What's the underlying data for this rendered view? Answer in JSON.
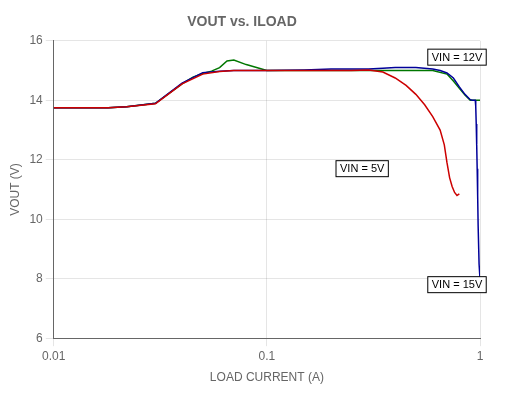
{
  "chart_data": {
    "type": "line",
    "title": "VOUT vs. ILOAD",
    "x_label": "LOAD CURRENT (A)",
    "y_label": "VOUT (V)",
    "log": "x",
    "grid": true,
    "xlim": [
      0.01,
      1.0
    ],
    "xticks": [
      0.01,
      0.1,
      1
    ],
    "ylim": [
      6,
      16
    ],
    "yticks": [
      6,
      8,
      10,
      12,
      14,
      16
    ],
    "series": [
      {
        "color": "#cc0000",
        "x": [
          0.01,
          0.018,
          0.022,
          0.03,
          0.04,
          0.05,
          0.06,
          0.07,
          0.08,
          0.1,
          0.15,
          0.2,
          0.25,
          0.3,
          0.35,
          0.4,
          0.45,
          0.5,
          0.55,
          0.6,
          0.65,
          0.68,
          0.7,
          0.72,
          0.74,
          0.76,
          0.78,
          0.8
        ],
        "values": [
          13.75,
          13.75,
          13.78,
          13.88,
          14.55,
          14.88,
          14.97,
          15.0,
          15.0,
          15.0,
          15.0,
          15.0,
          15.0,
          15.02,
          14.95,
          14.75,
          14.5,
          14.2,
          13.85,
          13.45,
          13.0,
          12.5,
          11.9,
          11.4,
          11.1,
          10.9,
          10.8,
          10.85
        ]
      },
      {
        "color": "#000099",
        "x": [
          0.01,
          0.018,
          0.022,
          0.03,
          0.04,
          0.05,
          0.06,
          0.07,
          0.08,
          0.1,
          0.15,
          0.2,
          0.25,
          0.3,
          0.35,
          0.4,
          0.5,
          0.6,
          0.65,
          0.7,
          0.75,
          0.8,
          0.85,
          0.9,
          0.92,
          0.93,
          0.94,
          0.95,
          0.955,
          0.96,
          0.965,
          0.97,
          0.975,
          0.98,
          0.99,
          1.0
        ],
        "values": [
          13.75,
          13.75,
          13.78,
          13.9,
          14.58,
          14.93,
          14.98,
          15.0,
          15.0,
          15.0,
          15.02,
          15.05,
          15.05,
          15.05,
          15.08,
          15.1,
          15.1,
          15.05,
          15.0,
          14.92,
          14.75,
          14.45,
          14.2,
          14.02,
          14.0,
          14.0,
          14.0,
          14.0,
          13.8,
          13.2,
          12.5,
          11.7,
          10.8,
          9.8,
          8.5,
          8.0
        ]
      },
      {
        "color": "#007700",
        "x": [
          0.01,
          0.018,
          0.022,
          0.03,
          0.04,
          0.045,
          0.05,
          0.055,
          0.06,
          0.065,
          0.07,
          0.08,
          0.1,
          0.15,
          0.2,
          0.25,
          0.3,
          0.4,
          0.5,
          0.6,
          0.7,
          0.75,
          0.8,
          0.85,
          0.9,
          0.92,
          0.93,
          0.94,
          0.95,
          0.96,
          0.97,
          0.975,
          0.98,
          0.985,
          0.99,
          0.995,
          1.0
        ],
        "values": [
          13.75,
          13.75,
          13.78,
          13.9,
          14.55,
          14.78,
          14.9,
          14.98,
          15.1,
          15.32,
          15.35,
          15.2,
          15.0,
          15.0,
          15.0,
          15.0,
          15.0,
          15.0,
          15.0,
          15.0,
          14.88,
          14.65,
          14.4,
          14.18,
          14.0,
          14.0,
          14.0,
          14.0,
          14.0,
          14.0,
          14.0,
          14.0,
          14.0,
          14.0,
          14.0,
          14.0,
          14.0
        ]
      }
    ],
    "annotations": [
      {
        "text": "VIN = 12V",
        "x": 0.78,
        "y": 15.45
      },
      {
        "text": "VIN = 5V",
        "x": 0.28,
        "y": 11.7
      },
      {
        "text": "VIN = 15V",
        "x": 0.78,
        "y": 7.8
      }
    ]
  }
}
